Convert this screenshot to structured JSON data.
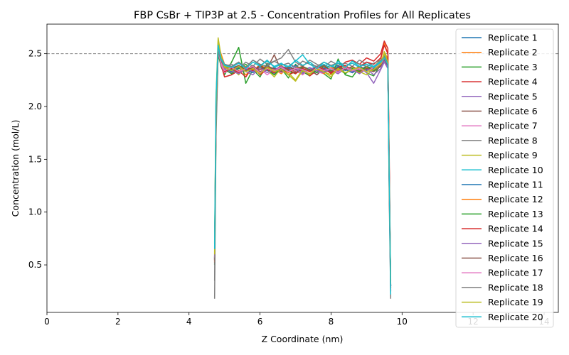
{
  "chart_data": {
    "type": "line",
    "title": "FBP CsBr + TIP3P at 2.5 - Concentration Profiles for All Replicates",
    "xlabel": "Z Coordinate (nm)",
    "ylabel": "Concentration (mol/L)",
    "xlim": [
      0,
      14.4
    ],
    "ylim": [
      0.05,
      2.78
    ],
    "xticks": [
      0,
      2,
      4,
      6,
      8,
      10,
      12,
      14
    ],
    "yticks": [
      0.5,
      1.0,
      1.5,
      2.0,
      2.5
    ],
    "xtick_labels": [
      "0",
      "2",
      "4",
      "6",
      "8",
      "10",
      "12",
      "14"
    ],
    "ytick_labels": [
      "0.5",
      "1.0",
      "1.5",
      "2.0",
      "2.5"
    ],
    "reference_line": {
      "y": 2.5,
      "style": "dashed",
      "color": "#808080"
    },
    "grid": false,
    "legend_position": "top-right",
    "x": [
      4.72,
      4.76,
      4.82,
      4.9,
      5.0,
      5.2,
      5.4,
      5.6,
      5.8,
      6.0,
      6.2,
      6.4,
      6.6,
      6.8,
      7.0,
      7.2,
      7.4,
      7.6,
      7.8,
      8.0,
      8.2,
      8.4,
      8.6,
      8.8,
      9.0,
      9.2,
      9.4,
      9.5,
      9.6,
      9.64,
      9.68
    ],
    "series": [
      {
        "name": "Replicate 1",
        "color": "#1f77b4",
        "values": [
          0.55,
          1.9,
          2.55,
          2.45,
          2.38,
          2.36,
          2.39,
          2.34,
          2.37,
          2.35,
          2.39,
          2.33,
          2.38,
          2.36,
          2.34,
          2.37,
          2.35,
          2.38,
          2.33,
          2.36,
          2.39,
          2.34,
          2.37,
          2.35,
          2.38,
          2.36,
          2.4,
          2.45,
          2.4,
          1.2,
          0.3
        ]
      },
      {
        "name": "Replicate 2",
        "color": "#ff7f0e",
        "values": [
          0.6,
          2.0,
          2.6,
          2.5,
          2.4,
          2.33,
          2.37,
          2.3,
          2.36,
          2.32,
          2.38,
          2.35,
          2.31,
          2.37,
          2.34,
          2.3,
          2.36,
          2.33,
          2.38,
          2.31,
          2.35,
          2.37,
          2.32,
          2.36,
          2.34,
          2.38,
          2.44,
          2.6,
          2.5,
          1.4,
          0.25
        ]
      },
      {
        "name": "Replicate 3",
        "color": "#2ca02c",
        "values": [
          0.5,
          1.8,
          2.5,
          2.38,
          2.3,
          2.42,
          2.56,
          2.22,
          2.35,
          2.28,
          2.41,
          2.3,
          2.36,
          2.27,
          2.4,
          2.33,
          2.29,
          2.38,
          2.31,
          2.26,
          2.45,
          2.3,
          2.28,
          2.37,
          2.32,
          2.29,
          2.4,
          2.48,
          2.42,
          1.3,
          0.3
        ]
      },
      {
        "name": "Replicate 4",
        "color": "#d62728",
        "values": [
          0.52,
          1.85,
          2.58,
          2.4,
          2.28,
          2.3,
          2.34,
          2.28,
          2.38,
          2.3,
          2.35,
          2.32,
          2.37,
          2.3,
          2.33,
          2.36,
          2.29,
          2.34,
          2.37,
          2.31,
          2.36,
          2.42,
          2.44,
          2.4,
          2.46,
          2.43,
          2.5,
          2.62,
          2.55,
          1.5,
          0.28
        ]
      },
      {
        "name": "Replicate 5",
        "color": "#9467bd",
        "values": [
          0.58,
          1.95,
          2.52,
          2.42,
          2.35,
          2.32,
          2.36,
          2.33,
          2.3,
          2.37,
          2.34,
          2.31,
          2.36,
          2.33,
          2.38,
          2.32,
          2.35,
          2.3,
          2.37,
          2.34,
          2.31,
          2.36,
          2.33,
          2.38,
          2.32,
          2.22,
          2.35,
          2.42,
          2.36,
          1.25,
          0.3
        ]
      },
      {
        "name": "Replicate 6",
        "color": "#8c564b",
        "values": [
          0.54,
          1.88,
          2.56,
          2.44,
          2.37,
          2.34,
          2.38,
          2.35,
          2.39,
          2.33,
          2.36,
          2.49,
          2.34,
          2.38,
          2.32,
          2.37,
          2.35,
          2.3,
          2.36,
          2.39,
          2.33,
          2.37,
          2.34,
          2.38,
          2.35,
          2.33,
          2.38,
          2.44,
          2.38,
          1.3,
          0.3
        ]
      },
      {
        "name": "Replicate 7",
        "color": "#e377c2",
        "values": [
          0.56,
          1.92,
          2.54,
          2.4,
          2.32,
          2.35,
          2.31,
          2.37,
          2.33,
          2.36,
          2.3,
          2.35,
          2.32,
          2.37,
          2.34,
          2.3,
          2.36,
          2.33,
          2.31,
          2.37,
          2.34,
          2.36,
          2.32,
          2.35,
          2.33,
          2.36,
          2.39,
          2.46,
          2.4,
          1.35,
          0.25
        ]
      },
      {
        "name": "Replicate 8",
        "color": "#7f7f7f",
        "values": [
          0.18,
          1.7,
          2.5,
          2.42,
          2.38,
          2.4,
          2.36,
          2.42,
          2.38,
          2.45,
          2.4,
          2.43,
          2.46,
          2.54,
          2.42,
          2.38,
          2.44,
          2.4,
          2.37,
          2.43,
          2.39,
          2.41,
          2.38,
          2.44,
          2.4,
          2.37,
          2.42,
          2.45,
          2.38,
          1.1,
          0.18
        ]
      },
      {
        "name": "Replicate 9",
        "color": "#bcbd22",
        "values": [
          0.7,
          2.1,
          2.65,
          2.48,
          2.38,
          2.36,
          2.3,
          2.38,
          2.33,
          2.4,
          2.35,
          2.28,
          2.37,
          2.32,
          2.25,
          2.35,
          2.3,
          2.38,
          2.33,
          2.28,
          2.36,
          2.31,
          2.37,
          2.33,
          2.3,
          2.36,
          2.4,
          2.52,
          2.45,
          1.3,
          0.35
        ]
      },
      {
        "name": "Replicate 10",
        "color": "#17becf",
        "values": [
          0.62,
          2.05,
          2.6,
          2.46,
          2.4,
          2.38,
          2.42,
          2.37,
          2.44,
          2.39,
          2.43,
          2.38,
          2.41,
          2.36,
          2.44,
          2.39,
          2.42,
          2.37,
          2.4,
          2.36,
          2.43,
          2.38,
          2.41,
          2.37,
          2.42,
          2.38,
          2.43,
          2.48,
          2.42,
          1.35,
          0.25
        ]
      },
      {
        "name": "Replicate 11",
        "color": "#1f77b4",
        "values": [
          0.57,
          1.93,
          2.53,
          2.43,
          2.36,
          2.33,
          2.37,
          2.35,
          2.32,
          2.38,
          2.34,
          2.37,
          2.33,
          2.36,
          2.39,
          2.34,
          2.37,
          2.32,
          2.36,
          2.33,
          2.38,
          2.35,
          2.32,
          2.37,
          2.34,
          2.36,
          2.39,
          2.44,
          2.39,
          1.28,
          0.3
        ]
      },
      {
        "name": "Replicate 12",
        "color": "#ff7f0e",
        "values": [
          0.53,
          1.87,
          2.57,
          2.45,
          2.34,
          2.37,
          2.33,
          2.38,
          2.35,
          2.31,
          2.37,
          2.34,
          2.39,
          2.32,
          2.36,
          2.38,
          2.33,
          2.36,
          2.31,
          2.37,
          2.34,
          2.38,
          2.35,
          2.32,
          2.37,
          2.35,
          2.41,
          2.5,
          2.44,
          1.32,
          0.28
        ]
      },
      {
        "name": "Replicate 13",
        "color": "#2ca02c",
        "values": [
          0.55,
          1.9,
          2.55,
          2.41,
          2.35,
          2.31,
          2.36,
          2.4,
          2.33,
          2.38,
          2.35,
          2.3,
          2.37,
          2.34,
          2.31,
          2.38,
          2.35,
          2.32,
          2.39,
          2.34,
          2.37,
          2.31,
          2.36,
          2.33,
          2.38,
          2.34,
          2.4,
          2.47,
          2.4,
          1.27,
          0.3
        ]
      },
      {
        "name": "Replicate 14",
        "color": "#d62728",
        "values": [
          0.54,
          1.89,
          2.56,
          2.43,
          2.33,
          2.36,
          2.32,
          2.37,
          2.34,
          2.39,
          2.35,
          2.32,
          2.38,
          2.35,
          2.31,
          2.36,
          2.33,
          2.38,
          2.35,
          2.32,
          2.37,
          2.39,
          2.34,
          2.38,
          2.42,
          2.4,
          2.46,
          2.58,
          2.5,
          1.4,
          0.28
        ]
      },
      {
        "name": "Replicate 15",
        "color": "#9467bd",
        "values": [
          0.56,
          1.91,
          2.54,
          2.42,
          2.36,
          2.34,
          2.31,
          2.36,
          2.33,
          2.37,
          2.32,
          2.35,
          2.38,
          2.33,
          2.36,
          2.31,
          2.37,
          2.34,
          2.32,
          2.36,
          2.33,
          2.37,
          2.35,
          2.31,
          2.36,
          2.3,
          2.36,
          2.43,
          2.37,
          1.26,
          0.3
        ]
      },
      {
        "name": "Replicate 16",
        "color": "#8c564b",
        "values": [
          0.55,
          1.9,
          2.55,
          2.44,
          2.37,
          2.35,
          2.39,
          2.34,
          2.37,
          2.35,
          2.38,
          2.36,
          2.33,
          2.37,
          2.35,
          2.38,
          2.34,
          2.36,
          2.39,
          2.33,
          2.37,
          2.35,
          2.38,
          2.34,
          2.36,
          2.35,
          2.39,
          2.45,
          2.39,
          1.29,
          0.3
        ]
      },
      {
        "name": "Replicate 17",
        "color": "#e377c2",
        "values": [
          0.57,
          1.94,
          2.53,
          2.41,
          2.34,
          2.37,
          2.33,
          2.36,
          2.38,
          2.32,
          2.36,
          2.34,
          2.37,
          2.33,
          2.36,
          2.35,
          2.31,
          2.37,
          2.34,
          2.36,
          2.32,
          2.37,
          2.34,
          2.36,
          2.33,
          2.37,
          2.4,
          2.46,
          2.4,
          1.3,
          0.26
        ]
      },
      {
        "name": "Replicate 18",
        "color": "#7f7f7f",
        "values": [
          0.35,
          1.8,
          2.52,
          2.44,
          2.4,
          2.38,
          2.42,
          2.37,
          2.44,
          2.4,
          2.38,
          2.43,
          2.39,
          2.41,
          2.37,
          2.43,
          2.4,
          2.38,
          2.42,
          2.39,
          2.41,
          2.37,
          2.43,
          2.4,
          2.38,
          2.41,
          2.44,
          2.47,
          2.4,
          1.2,
          0.2
        ]
      },
      {
        "name": "Replicate 19",
        "color": "#bcbd22",
        "values": [
          0.6,
          2.0,
          2.62,
          2.46,
          2.37,
          2.34,
          2.38,
          2.33,
          2.36,
          2.31,
          2.37,
          2.33,
          2.35,
          2.3,
          2.24,
          2.34,
          2.31,
          2.36,
          2.33,
          2.3,
          2.36,
          2.32,
          2.35,
          2.37,
          2.33,
          2.35,
          2.4,
          2.5,
          2.43,
          1.3,
          0.32
        ]
      },
      {
        "name": "Replicate 20",
        "color": "#17becf",
        "values": [
          0.65,
          2.08,
          2.58,
          2.45,
          2.39,
          2.37,
          2.41,
          2.36,
          2.42,
          2.38,
          2.44,
          2.37,
          2.4,
          2.38,
          2.43,
          2.49,
          2.4,
          2.36,
          2.42,
          2.38,
          2.41,
          2.37,
          2.43,
          2.38,
          2.4,
          2.37,
          2.42,
          2.46,
          2.4,
          1.3,
          0.22
        ]
      }
    ]
  }
}
